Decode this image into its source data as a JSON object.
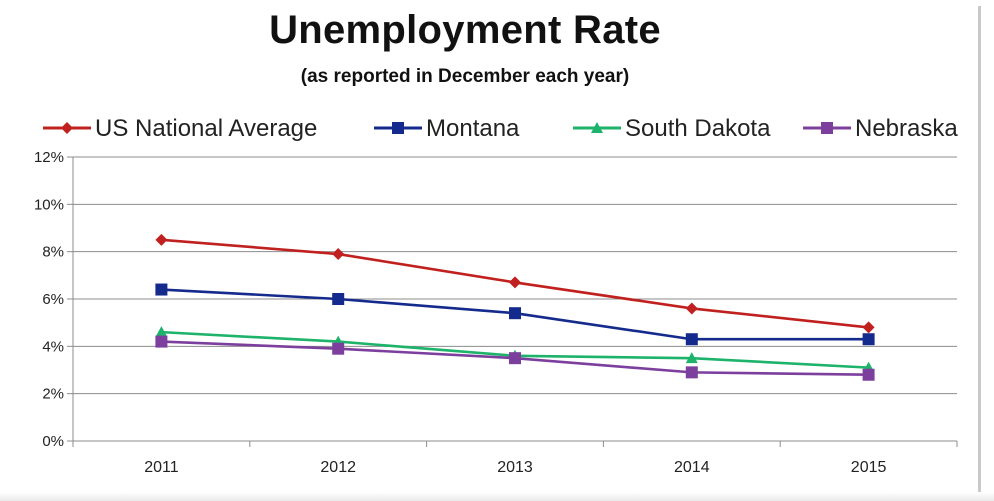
{
  "chart_data": {
    "type": "line",
    "title": "Unemployment Rate",
    "subtitle": "(as reported in December each year)",
    "xlabel": "",
    "ylabel": "",
    "categories": [
      "2011",
      "2012",
      "2013",
      "2014",
      "2015"
    ],
    "ylim": [
      0,
      12
    ],
    "yticks": [
      0,
      2,
      4,
      6,
      8,
      10,
      12
    ],
    "ytick_labels": [
      "0%",
      "2%",
      "4%",
      "6%",
      "8%",
      "10%",
      "12%"
    ],
    "grid": true,
    "legend_position": "top",
    "series": [
      {
        "name": "US National Average",
        "values": [
          8.5,
          7.9,
          6.7,
          5.6,
          4.8
        ],
        "color": "#c0211f",
        "marker": "diamond"
      },
      {
        "name": "Montana",
        "values": [
          6.4,
          6.0,
          5.4,
          4.3,
          4.3
        ],
        "color": "#142a8c",
        "marker": "square"
      },
      {
        "name": "South Dakota",
        "values": [
          4.6,
          4.2,
          3.6,
          3.5,
          3.1
        ],
        "color": "#1db36a",
        "marker": "triangle"
      },
      {
        "name": "Nebraska",
        "values": [
          4.2,
          3.9,
          3.5,
          2.9,
          2.8
        ],
        "color": "#7d3f9e",
        "marker": "square"
      }
    ]
  }
}
